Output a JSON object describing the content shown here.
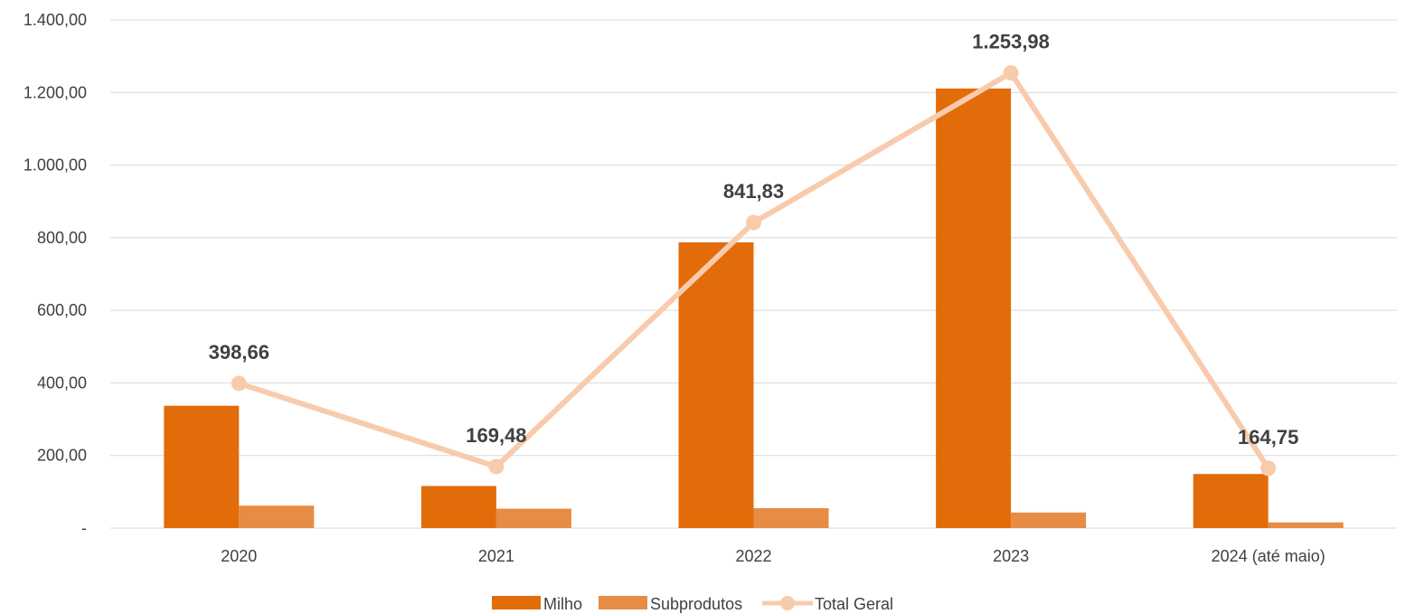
{
  "chart_data": {
    "type": "bar",
    "categories": [
      "2020",
      "2021",
      "2022",
      "2023",
      "2024 (até maio)"
    ],
    "series": [
      {
        "name": "Milho",
        "type": "bar",
        "color": "#E36C0A",
        "values": [
          337,
          116,
          787,
          1211,
          149
        ]
      },
      {
        "name": "Subprodutos",
        "type": "bar",
        "color": "#E68C44",
        "values": [
          61.66,
          53.48,
          54.83,
          42.98,
          15.75
        ]
      },
      {
        "name": "Total Geral",
        "type": "line",
        "color": "#F8CBAD",
        "values": [
          398.66,
          169.48,
          841.83,
          1253.98,
          164.75
        ],
        "data_labels": [
          "398,66",
          "169,48",
          "841,83",
          "1.253,98",
          "164,75"
        ]
      }
    ],
    "y_ticks": [
      "-",
      "200,00",
      "400,00",
      "600,00",
      "800,00",
      "1.000,00",
      "1.200,00",
      "1.400,00"
    ],
    "ylim": [
      0,
      1400
    ],
    "grid": true,
    "legend_position": "bottom",
    "title": "",
    "xlabel": "",
    "ylabel": ""
  }
}
